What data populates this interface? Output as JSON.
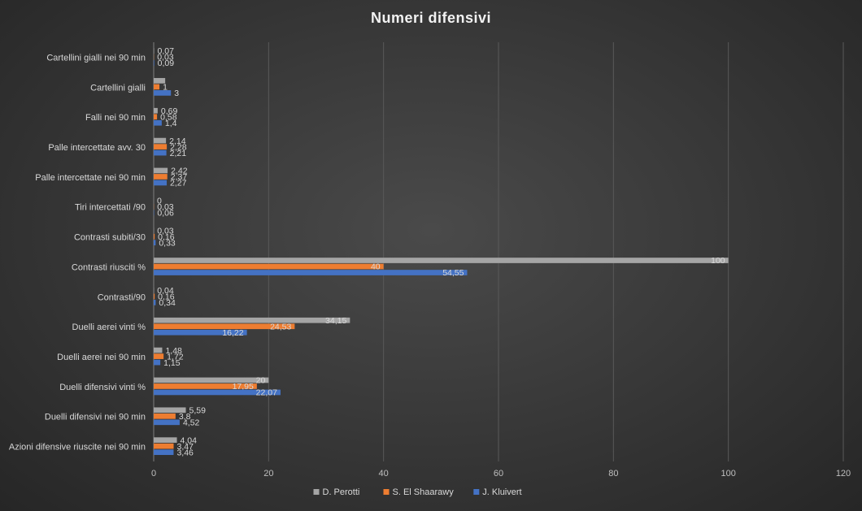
{
  "chart_data": {
    "type": "bar",
    "orientation": "horizontal",
    "title": "Numeri  difensivi",
    "categories": [
      "Cartellini gialli nei 90 min",
      "Cartellini gialli",
      "Falli nei 90 min",
      "Palle intercettate avv. 30",
      "Palle intercettate nei 90 min",
      "Tiri intercettati /90",
      "Contrasti subiti/30",
      "Contrasti riusciti %",
      "Contrasti/90",
      "Duelli aerei vinti %",
      "Duelli aerei nei 90 min",
      "Duelli difensivi vinti %",
      "Duelli difensivi nei 90 min",
      "Azioni difensive riuscite nei 90 min"
    ],
    "series": [
      {
        "name": "D. Perotti",
        "color": "#a5a5a5",
        "values": [
          0.07,
          2,
          0.69,
          2.14,
          2.42,
          0,
          0.03,
          100,
          0.04,
          34.15,
          1.48,
          20,
          5.59,
          4.04
        ],
        "labels": [
          "0,07",
          "",
          "0,69",
          "2,14",
          "2,42",
          "0",
          "0,03",
          "100",
          "0,04",
          "34,15",
          "1,48",
          "20",
          "5,59",
          "4,04"
        ]
      },
      {
        "name": "S. El Shaarawy",
        "color": "#ed7d31",
        "values": [
          0.03,
          1,
          0.58,
          2.28,
          2.37,
          0.03,
          0.16,
          40,
          0.16,
          24.53,
          1.72,
          17.95,
          3.8,
          3.47
        ],
        "labels": [
          "0,03",
          "1",
          "0,58",
          "2,28",
          "2,37",
          "0,03",
          "0,16",
          "40",
          "0,16",
          "24,53",
          "1,72",
          "17,95",
          "3,8",
          "3,47"
        ]
      },
      {
        "name": "J. Kluivert",
        "color": "#4472c4",
        "values": [
          0.09,
          3,
          1.4,
          2.21,
          2.27,
          0.06,
          0.33,
          54.55,
          0.34,
          16.22,
          1.15,
          22.07,
          4.52,
          3.46
        ],
        "labels": [
          "0,09",
          "3",
          "1,4",
          "2,21",
          "2,27",
          "0,06",
          "0,33",
          "54,55",
          "0,34",
          "16,22",
          "1,15",
          "22,07",
          "4,52",
          "3,46"
        ]
      }
    ],
    "xlim": [
      0,
      120
    ],
    "xticks": [
      "0",
      "20",
      "40",
      "60",
      "80",
      "100",
      "120"
    ],
    "grid": true,
    "legend_position": "bottom"
  }
}
